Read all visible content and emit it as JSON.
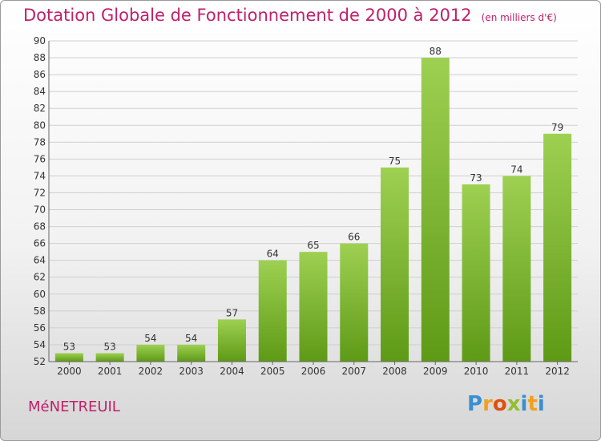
{
  "title": "Dotation Globale de Fonctionnement de 2000 à 2012",
  "unit_note": "(en milliers d'€)",
  "commune": "MéNETREUIL",
  "logo": "Proxiti",
  "colors": {
    "title": "#c0206a",
    "bar_top": "#9ed052",
    "bar_bottom": "#5e9a16",
    "grid": "#cfcfcf"
  },
  "chart_data": {
    "type": "bar",
    "categories": [
      "2000",
      "2001",
      "2002",
      "2003",
      "2004",
      "2005",
      "2006",
      "2007",
      "2008",
      "2009",
      "2010",
      "2011",
      "2012"
    ],
    "values": [
      53,
      53,
      54,
      54,
      57,
      64,
      65,
      66,
      75,
      88,
      73,
      74,
      79
    ],
    "ylim": [
      52,
      90
    ],
    "ytick_step": 2,
    "grid": true
  }
}
